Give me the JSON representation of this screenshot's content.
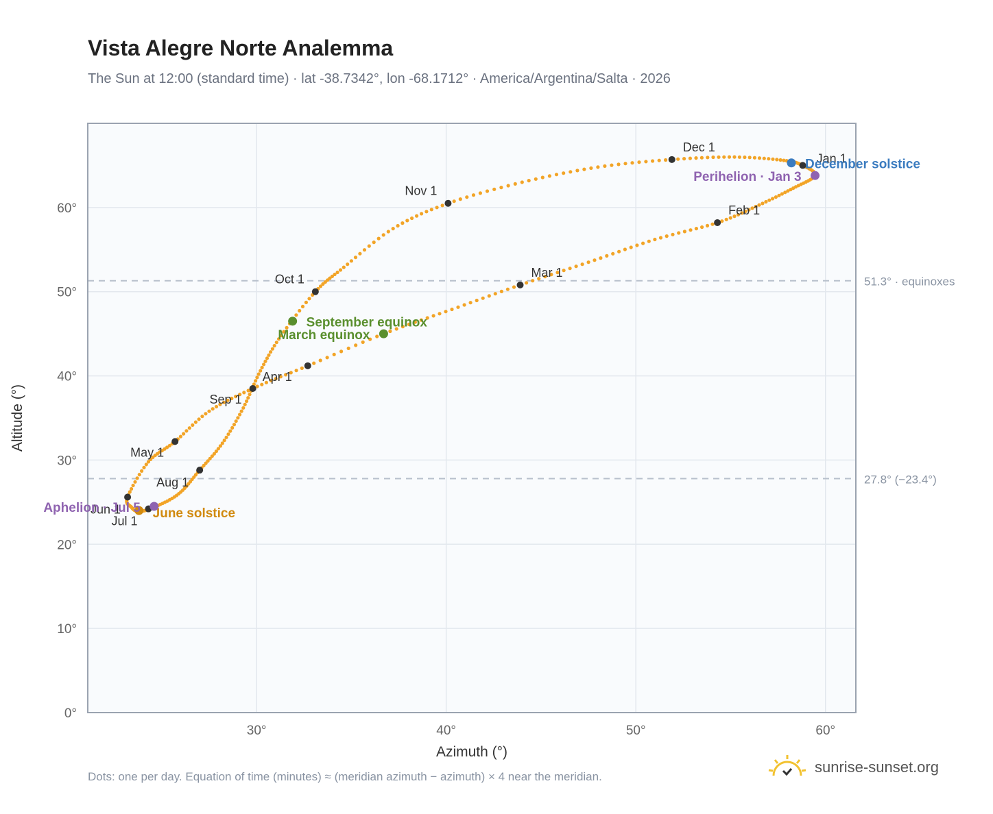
{
  "title": "Vista Alegre Norte Analemma",
  "subtitle": "The Sun at 12:00 (standard time) · lat -38.7342°, lon -68.1712° · America/Argentina/Salta · 2026",
  "footnote": "Dots: one per day. Equation of time (minutes) ≈ (meridian azimuth − azimuth) × 4 near the meridian.",
  "brand": {
    "name": "sunrise-sunset.org",
    "icon": "sun-icon"
  },
  "colors": {
    "path": "#f2a427",
    "month_marker": "#333333",
    "equinox": "#5a8f2e",
    "december_solstice": "#3a7bbf",
    "june_solstice": "#d18a0f",
    "aphelion_perihelion": "#8f63b0",
    "reference_line": "#b8c0cc",
    "plot_bg": "#f9fbfd",
    "frame": "#9aa3b0",
    "grid": "#e3e8ee"
  },
  "chart_data": {
    "type": "scatter",
    "xlabel": "Azimuth (°)",
    "ylabel": "Altitude (°)",
    "xlim": [
      21.1,
      61.6
    ],
    "ylim": [
      0,
      70
    ],
    "x_ticks": [
      30,
      40,
      50,
      60
    ],
    "y_ticks": [
      0,
      10,
      20,
      30,
      40,
      50,
      60
    ],
    "x_tick_labels": [
      "30°",
      "40°",
      "50°",
      "60°"
    ],
    "y_tick_labels": [
      "0°",
      "10°",
      "20°",
      "30°",
      "40°",
      "50°",
      "60°"
    ],
    "grid": true,
    "reference_lines": [
      {
        "y": 51.3,
        "label": "51.3° · equinoxes"
      },
      {
        "y": 27.8,
        "label": "27.8° (−23.4°)"
      }
    ],
    "path_series": {
      "name": "one per day",
      "points": [
        [
          58.8,
          65.0
        ],
        [
          59.45,
          63.8
        ],
        [
          58.3,
          62.3
        ],
        [
          56.5,
          60.3
        ],
        [
          54.3,
          58.2
        ],
        [
          51.0,
          56.2
        ],
        [
          47.5,
          53.5
        ],
        [
          43.9,
          50.8
        ],
        [
          40.3,
          47.9
        ],
        [
          36.7,
          45.0
        ],
        [
          32.7,
          41.2
        ],
        [
          29.8,
          38.5
        ],
        [
          27.5,
          35.8
        ],
        [
          25.7,
          32.2
        ],
        [
          24.3,
          29.8
        ],
        [
          23.2,
          25.6
        ],
        [
          23.4,
          24.4
        ],
        [
          23.8,
          23.9
        ],
        [
          24.6,
          24.4
        ],
        [
          25.9,
          26.0
        ],
        [
          27.0,
          28.8
        ],
        [
          28.2,
          32.0
        ],
        [
          29.3,
          36.2
        ],
        [
          30.2,
          40.6
        ],
        [
          31.3,
          44.8
        ],
        [
          33.1,
          50.0
        ],
        [
          34.6,
          52.9
        ],
        [
          37.2,
          57.5
        ],
        [
          40.1,
          60.5
        ],
        [
          44.0,
          63.0
        ],
        [
          48.0,
          64.8
        ],
        [
          51.9,
          65.7
        ],
        [
          55.2,
          66.0
        ],
        [
          57.8,
          65.6
        ],
        [
          58.8,
          65.0
        ]
      ]
    },
    "month_markers": [
      {
        "label": "Jan 1",
        "x": 58.8,
        "y": 65.0
      },
      {
        "label": "Feb 1",
        "x": 54.3,
        "y": 58.2
      },
      {
        "label": "Mar 1",
        "x": 43.9,
        "y": 50.8
      },
      {
        "label": "Apr 1",
        "x": 32.7,
        "y": 41.2
      },
      {
        "label": "May 1",
        "x": 25.7,
        "y": 32.2
      },
      {
        "label": "Jun 1",
        "x": 23.2,
        "y": 25.6
      },
      {
        "label": "Jul 1",
        "x": 24.3,
        "y": 24.2
      },
      {
        "label": "Aug 1",
        "x": 27.0,
        "y": 28.8
      },
      {
        "label": "Sep 1",
        "x": 29.8,
        "y": 38.5
      },
      {
        "label": "Oct 1",
        "x": 33.1,
        "y": 50.0
      },
      {
        "label": "Nov 1",
        "x": 40.1,
        "y": 60.5
      },
      {
        "label": "Dec 1",
        "x": 51.9,
        "y": 65.7
      }
    ],
    "special_points": [
      {
        "label": "December solstice",
        "x": 58.2,
        "y": 65.3,
        "kind": "december_solstice"
      },
      {
        "label": "Perihelion · Jan 3",
        "x": 59.45,
        "y": 63.8,
        "kind": "aphelion_perihelion"
      },
      {
        "label": "March equinox",
        "x": 36.7,
        "y": 45.0,
        "kind": "equinox"
      },
      {
        "label": "September equinox",
        "x": 31.9,
        "y": 46.5,
        "kind": "equinox"
      },
      {
        "label": "June solstice",
        "x": 23.8,
        "y": 24.0,
        "kind": "june_solstice"
      },
      {
        "label": "Aphelion · Jul 5",
        "x": 24.6,
        "y": 24.5,
        "kind": "aphelion_perihelion"
      }
    ]
  }
}
